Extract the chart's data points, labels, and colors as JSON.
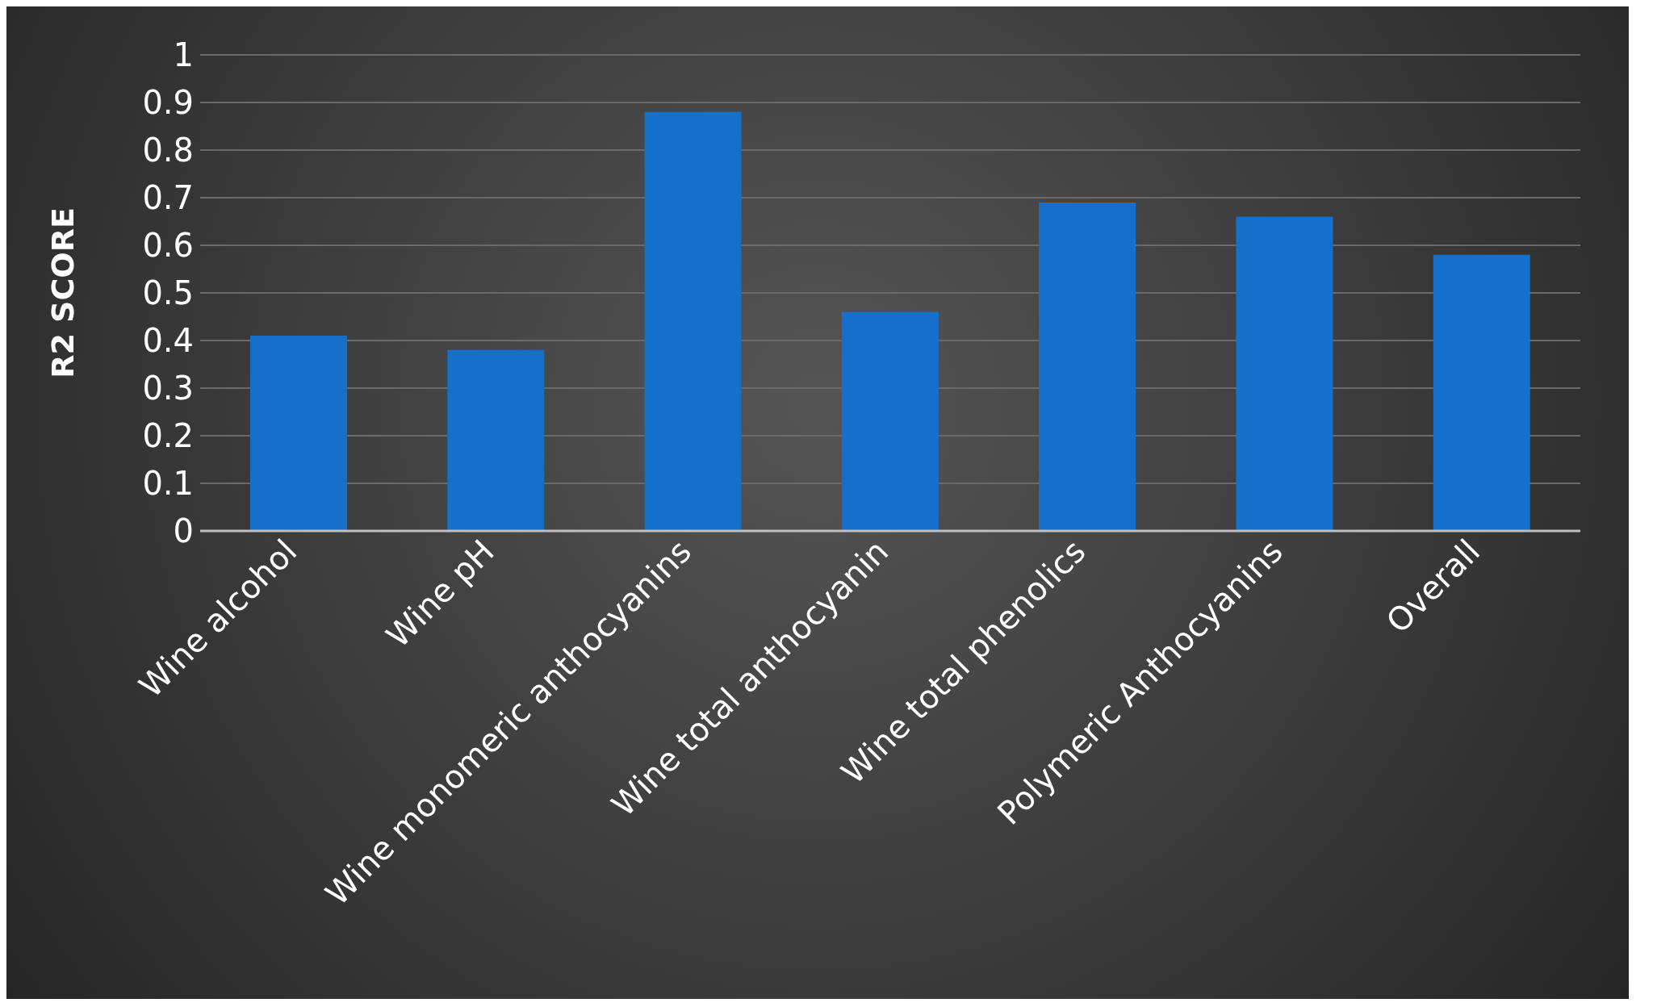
{
  "chart_data": {
    "type": "bar",
    "ylabel": "R2 SCORE",
    "categories": [
      "Wine alcohol",
      "Wine pH",
      "Wine monomeric anthocyanins",
      "Wine total anthocyanin",
      "Wine total phenolics",
      "Polymeric Anthocyanins",
      "Overall"
    ],
    "values": [
      0.41,
      0.38,
      0.88,
      0.46,
      0.69,
      0.66,
      0.58
    ],
    "color": "#1570cc",
    "ylim": [
      0,
      1
    ],
    "yticks": [
      0,
      0.1,
      0.2,
      0.3,
      0.4,
      0.5,
      0.6,
      0.7,
      0.8,
      0.9,
      1
    ],
    "grid": "y"
  }
}
